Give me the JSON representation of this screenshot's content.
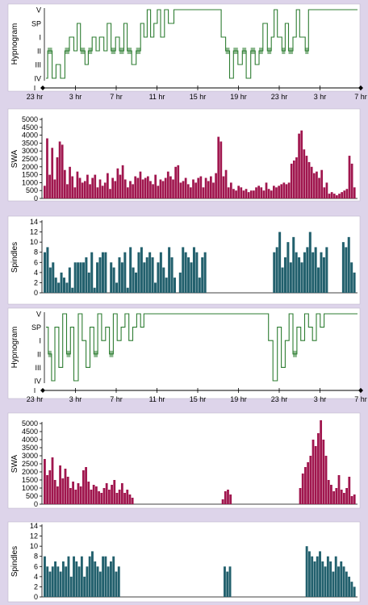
{
  "colors": {
    "background": "#ddd4ea",
    "panel": "#ffffff",
    "hypnogram": "#2e7d32",
    "swa": "#a0164e",
    "spindles": "#22606d",
    "axis": "#000000"
  },
  "chart_data": [
    {
      "type": "line",
      "panel": "hypnogram-1",
      "ylabel": "Hypnogram",
      "stage_labels": [
        "V",
        "SP",
        "I",
        "II",
        "III",
        "IV"
      ],
      "x_tick_labels": [
        "23 hr",
        "3 hr",
        "7 hr",
        "11 hr",
        "15 hr",
        "19 hr",
        "23 hr",
        "3 hr",
        "7 hr"
      ],
      "xlim_hours": [
        0,
        56
      ],
      "grid": false,
      "series": [
        {
          "stage_segments": [
            [
              0,
              0.3,
              5
            ],
            [
              0.3,
              1.1,
              3
            ],
            [
              1.1,
              1.8,
              5
            ],
            [
              1.8,
              2.6,
              4
            ],
            [
              2.6,
              3.4,
              5
            ],
            [
              3.4,
              4.2,
              3
            ],
            [
              4.2,
              5.0,
              2
            ],
            [
              5.0,
              5.6,
              3
            ],
            [
              5.6,
              6.2,
              1
            ],
            [
              6.2,
              7.0,
              3
            ],
            [
              7.0,
              7.6,
              4
            ],
            [
              7.6,
              8.3,
              3
            ],
            [
              8.3,
              9.0,
              2
            ],
            [
              9.0,
              9.6,
              3
            ],
            [
              9.6,
              10.4,
              2
            ],
            [
              10.4,
              11.0,
              3
            ],
            [
              11.0,
              11.7,
              1
            ],
            [
              11.7,
              12.5,
              3
            ],
            [
              12.5,
              13.2,
              2
            ],
            [
              13.2,
              14.0,
              3
            ],
            [
              14.0,
              14.6,
              1
            ],
            [
              14.6,
              15.4,
              3
            ],
            [
              15.4,
              16.2,
              4
            ],
            [
              16.2,
              17.0,
              3
            ],
            [
              17.0,
              17.6,
              1
            ],
            [
              17.6,
              18.2,
              2
            ],
            [
              18.2,
              18.8,
              0
            ],
            [
              18.8,
              19.4,
              2
            ],
            [
              19.4,
              20.0,
              1
            ],
            [
              20.0,
              20.6,
              0
            ],
            [
              20.6,
              21.3,
              2
            ],
            [
              21.3,
              22.0,
              0
            ],
            [
              22.0,
              23.0,
              1
            ],
            [
              23.0,
              31.5,
              0
            ],
            [
              31.5,
              32.3,
              2
            ],
            [
              32.3,
              33.0,
              3
            ],
            [
              33.0,
              33.7,
              5
            ],
            [
              33.7,
              34.5,
              3
            ],
            [
              34.5,
              35.3,
              4
            ],
            [
              35.3,
              36.0,
              3
            ],
            [
              36.0,
              36.8,
              5
            ],
            [
              36.8,
              37.6,
              3
            ],
            [
              37.6,
              38.3,
              4
            ],
            [
              38.3,
              39.0,
              3
            ],
            [
              39.0,
              39.8,
              1
            ],
            [
              39.8,
              40.5,
              3
            ],
            [
              40.5,
              41.0,
              2
            ],
            [
              41.0,
              41.6,
              0
            ],
            [
              41.6,
              42.4,
              2
            ],
            [
              42.4,
              43.0,
              3
            ],
            [
              43.0,
              43.6,
              1
            ],
            [
              43.6,
              44.4,
              3
            ],
            [
              44.4,
              45.0,
              2
            ],
            [
              45.0,
              45.6,
              0
            ],
            [
              45.6,
              46.6,
              2
            ],
            [
              46.6,
              47.2,
              3
            ],
            [
              47.2,
              47.7,
              0
            ],
            [
              47.7,
              56,
              0
            ]
          ]
        }
      ]
    },
    {
      "type": "bar",
      "panel": "swa-1",
      "ylabel": "SWA",
      "ylim": [
        0,
        5000
      ],
      "y_tick_labels": [
        "0",
        "500",
        "1000",
        "1500",
        "2000",
        "2500",
        "3000",
        "3500",
        "4000",
        "4500",
        "5000"
      ],
      "xlim_hours": [
        0,
        56
      ],
      "grid": false,
      "series": [
        {
          "values": [
            800,
            3800,
            1500,
            3200,
            1200,
            2600,
            3600,
            3400,
            1800,
            900,
            2000,
            1400,
            700,
            1700,
            1300,
            1000,
            1100,
            1500,
            900,
            1300,
            1500,
            700,
            1200,
            800,
            1000,
            1600,
            600,
            1300,
            1100,
            1900,
            1500,
            2100,
            1200,
            700,
            1100,
            900,
            1400,
            1300,
            1700,
            1200,
            1300,
            1400,
            1100,
            900,
            1500,
            800,
            1200,
            1100,
            1300,
            1700,
            1400,
            1200,
            2000,
            2100,
            1000,
            1100,
            1300,
            900,
            700,
            1200,
            1000,
            1300,
            1400,
            700,
            1300,
            1100,
            1400,
            1000,
            1600,
            3900,
            3600,
            1400,
            1800,
            700,
            1000,
            600,
            500,
            800,
            700,
            500,
            600,
            400,
            500,
            500,
            700,
            800,
            700,
            500,
            1000,
            600,
            500,
            800,
            700,
            800,
            900,
            1000,
            900,
            1000,
            2200,
            2400,
            2600,
            4100,
            4300,
            3100,
            2700,
            2300,
            2000,
            1600,
            1700,
            1300,
            1800,
            700,
            1000,
            300,
            400,
            300,
            200,
            300,
            400,
            500,
            600,
            2700,
            2200,
            700
          ]
        }
      ]
    },
    {
      "type": "bar",
      "panel": "spindles-1",
      "ylabel": "Spindles",
      "ylim": [
        0,
        14
      ],
      "y_tick_labels": [
        "0",
        "2",
        "4",
        "6",
        "8",
        "10",
        "12",
        "14"
      ],
      "xlim_hours": [
        0,
        56
      ],
      "grid": false,
      "series": [
        {
          "values": [
            8,
            9,
            5,
            6,
            3,
            2,
            4,
            3,
            2,
            5,
            1,
            6,
            6,
            6,
            6,
            7,
            4,
            8,
            1,
            6,
            7,
            8,
            8,
            0,
            6,
            5,
            2,
            7,
            6,
            8,
            1,
            9,
            5,
            4,
            8,
            9,
            6,
            7,
            8,
            7,
            2,
            6,
            8,
            5,
            3,
            9,
            7,
            3,
            0,
            4,
            9,
            8,
            7,
            6,
            9,
            8,
            3,
            7,
            8,
            0,
            0,
            0,
            0,
            0,
            0,
            0,
            0,
            0,
            0,
            0,
            0,
            0,
            0,
            0,
            0,
            0,
            0,
            0,
            0,
            0,
            0,
            0,
            0,
            8,
            9,
            12,
            5,
            7,
            10,
            6,
            11,
            8,
            7,
            6,
            8,
            9,
            12,
            8,
            9,
            5,
            8,
            7,
            9,
            0,
            0,
            0,
            0,
            0,
            10,
            9,
            11,
            6,
            4
          ]
        }
      ]
    },
    {
      "type": "line",
      "panel": "hypnogram-2",
      "ylabel": "Hypnogram",
      "stage_labels": [
        "V",
        "SP",
        "I",
        "II",
        "III",
        "IV"
      ],
      "x_tick_labels": [
        "23 hr",
        "3 hr",
        "7 hr",
        "11 hr",
        "15 hr",
        "19 hr",
        "23 hr",
        "3 hr",
        "7 hr"
      ],
      "xlim_hours": [
        0,
        56
      ],
      "grid": false,
      "series": [
        {
          "stage_segments": [
            [
              0,
              0.4,
              1
            ],
            [
              0.4,
              1.0,
              3
            ],
            [
              1.0,
              1.6,
              5
            ],
            [
              1.6,
              2.3,
              1
            ],
            [
              2.3,
              3.0,
              4
            ],
            [
              3.0,
              3.7,
              0
            ],
            [
              3.7,
              4.4,
              3
            ],
            [
              4.4,
              5.0,
              1
            ],
            [
              5.0,
              5.8,
              5
            ],
            [
              5.8,
              6.5,
              0
            ],
            [
              6.5,
              7.2,
              2
            ],
            [
              7.2,
              7.9,
              4
            ],
            [
              7.9,
              8.6,
              1
            ],
            [
              8.6,
              9.3,
              3
            ],
            [
              9.3,
              10.0,
              0
            ],
            [
              10.0,
              10.7,
              2
            ],
            [
              10.7,
              11.4,
              1
            ],
            [
              11.4,
              12.1,
              3
            ],
            [
              12.1,
              12.8,
              0
            ],
            [
              12.8,
              13.5,
              2
            ],
            [
              13.5,
              14.2,
              1
            ],
            [
              14.2,
              14.9,
              0
            ],
            [
              14.9,
              15.6,
              2
            ],
            [
              15.6,
              16.3,
              1
            ],
            [
              16.3,
              17.0,
              0
            ],
            [
              17.0,
              17.6,
              1
            ],
            [
              17.6,
              40.0,
              0
            ],
            [
              40.0,
              40.8,
              2
            ],
            [
              40.8,
              41.6,
              5
            ],
            [
              41.6,
              42.3,
              1
            ],
            [
              42.3,
              43.0,
              4
            ],
            [
              43.0,
              43.7,
              2
            ],
            [
              43.7,
              44.4,
              0
            ],
            [
              44.4,
              45.1,
              3
            ],
            [
              45.1,
              45.8,
              1
            ],
            [
              45.8,
              46.5,
              2
            ],
            [
              46.5,
              47.2,
              0
            ],
            [
              47.2,
              47.9,
              1
            ],
            [
              47.9,
              48.6,
              2
            ],
            [
              48.6,
              49.3,
              0
            ],
            [
              49.3,
              50.0,
              1
            ],
            [
              50.0,
              56,
              0
            ]
          ]
        }
      ]
    },
    {
      "type": "bar",
      "panel": "swa-2",
      "ylabel": "SWA",
      "ylim": [
        0,
        5000
      ],
      "y_tick_labels": [
        "0",
        "500",
        "1000",
        "1500",
        "2000",
        "2500",
        "3000",
        "3500",
        "4000",
        "4500",
        "5000"
      ],
      "xlim_hours": [
        0,
        56
      ],
      "grid": false,
      "series": [
        {
          "values": [
            2800,
            1800,
            2100,
            2900,
            1500,
            1100,
            2400,
            1600,
            2200,
            1700,
            1000,
            1400,
            900,
            1300,
            1100,
            2100,
            2300,
            1400,
            900,
            1200,
            1100,
            800,
            700,
            1000,
            1300,
            900,
            1200,
            1500,
            700,
            900,
            1300,
            700,
            900,
            600,
            400,
            0,
            0,
            0,
            0,
            0,
            0,
            0,
            0,
            0,
            0,
            0,
            0,
            0,
            0,
            0,
            0,
            0,
            0,
            0,
            0,
            0,
            0,
            0,
            0,
            0,
            0,
            0,
            0,
            0,
            0,
            0,
            0,
            0,
            0,
            300,
            800,
            900,
            600,
            0,
            0,
            0,
            0,
            0,
            0,
            0,
            0,
            0,
            0,
            0,
            0,
            0,
            0,
            0,
            0,
            0,
            0,
            0,
            0,
            0,
            0,
            0,
            0,
            0,
            0,
            1000,
            1900,
            2300,
            2600,
            3000,
            4000,
            3600,
            4400,
            5200,
            4000,
            3000,
            1500,
            1200,
            800,
            1000,
            1800,
            900,
            700,
            1000,
            1700,
            500,
            600
          ]
        }
      ]
    },
    {
      "type": "bar",
      "panel": "spindles-2",
      "ylabel": "Spindles",
      "ylim": [
        0,
        14
      ],
      "y_tick_labels": [
        "0",
        "2",
        "4",
        "6",
        "8",
        "10",
        "12",
        "14"
      ],
      "xlim_hours": [
        0,
        56
      ],
      "grid": false,
      "series": [
        {
          "values": [
            8,
            6,
            5,
            6,
            7,
            6,
            5,
            7,
            6,
            8,
            4,
            8,
            7,
            6,
            8,
            4,
            6,
            8,
            9,
            7,
            6,
            5,
            8,
            8,
            6,
            7,
            8,
            5,
            6,
            0,
            0,
            0,
            0,
            0,
            0,
            0,
            0,
            0,
            0,
            0,
            0,
            0,
            0,
            0,
            0,
            0,
            0,
            0,
            0,
            0,
            0,
            0,
            0,
            0,
            0,
            0,
            0,
            0,
            0,
            0,
            0,
            0,
            0,
            0,
            0,
            0,
            0,
            0,
            6,
            5,
            6,
            0,
            0,
            0,
            0,
            0,
            0,
            0,
            0,
            0,
            0,
            0,
            0,
            0,
            0,
            0,
            0,
            0,
            0,
            0,
            0,
            0,
            0,
            0,
            0,
            0,
            0,
            0,
            0,
            10,
            9,
            8,
            7,
            8,
            9,
            7,
            6,
            8,
            7,
            5,
            8,
            6,
            7,
            6,
            5,
            4,
            3,
            2
          ]
        }
      ]
    }
  ]
}
